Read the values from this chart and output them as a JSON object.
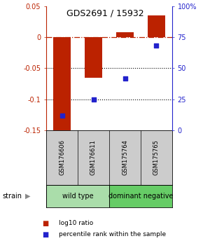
{
  "title": "GDS2691 / 15932",
  "samples": [
    "GSM176606",
    "GSM176611",
    "GSM175764",
    "GSM175765"
  ],
  "log10_ratio": [
    -0.155,
    -0.065,
    0.008,
    0.035
  ],
  "percentile_rank": [
    12,
    25,
    42,
    68
  ],
  "ylim_left": [
    -0.15,
    0.05
  ],
  "ylim_right": [
    0,
    100
  ],
  "yticks_left": [
    -0.15,
    -0.1,
    -0.05,
    0.0,
    0.05
  ],
  "yticks_right": [
    0,
    25,
    50,
    75,
    100
  ],
  "ytick_labels_left": [
    "-0.15",
    "-0.1",
    "-0.05",
    "0",
    "0.05"
  ],
  "ytick_labels_right": [
    "0",
    "25",
    "50",
    "75",
    "100%"
  ],
  "hlines": [
    -0.05,
    -0.1
  ],
  "zero_line": 0.0,
  "bar_color": "#bb2200",
  "dot_color": "#2222cc",
  "bar_width": 0.55,
  "group1_label": "wild type",
  "group1_color": "#aaddaa",
  "group2_label": "dominant negative",
  "group2_color": "#66cc66",
  "sample_bg": "#cccccc",
  "strain_label": "strain",
  "legend_bar_label": "log10 ratio",
  "legend_dot_label": "percentile rank within the sample",
  "background_color": "#ffffff"
}
